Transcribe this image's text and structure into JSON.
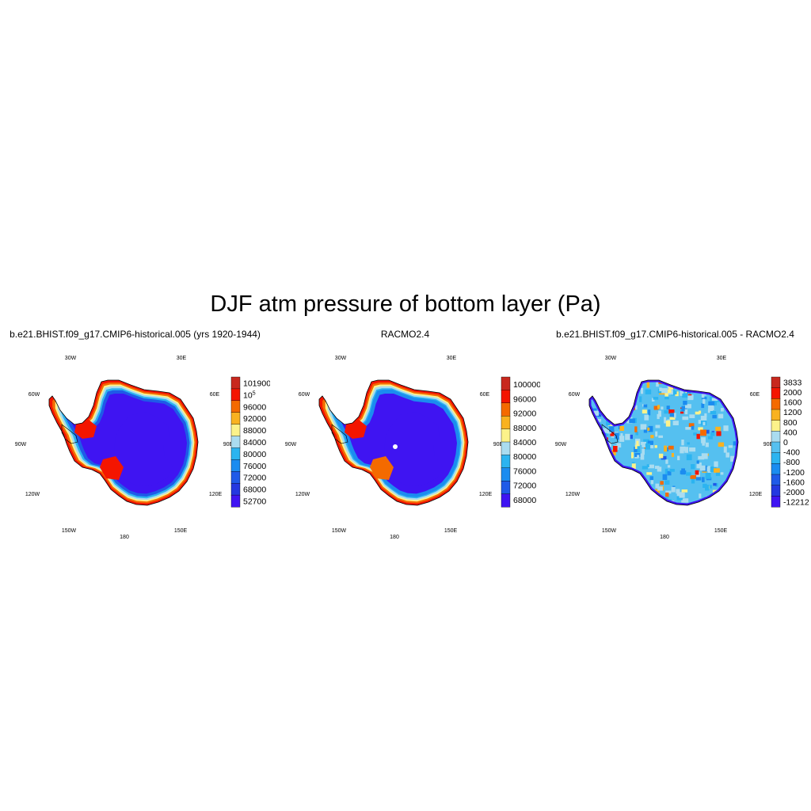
{
  "title": "DJF atm pressure of bottom layer (Pa)",
  "lon_labels": [
    "30W",
    "30E",
    "60W",
    "60E",
    "90W",
    "90E",
    "120W",
    "120E",
    "150W",
    "150E",
    "180"
  ],
  "panels": [
    {
      "title": "b.e21.BHIST.f09_g17.CMIP6-historical.005 (yrs 1920-1944)",
      "field": "model",
      "colorbar": {
        "labels": [
          "101900",
          "10^5",
          "96000",
          "92000",
          "88000",
          "84000",
          "80000",
          "76000",
          "72000",
          "68000",
          "52700"
        ],
        "colors": [
          "#c8281e",
          "#f41500",
          "#f46a00",
          "#f9b220",
          "#fcf28a",
          "#aadcf0",
          "#2cb4f0",
          "#1b8cf0",
          "#1f5ae8",
          "#2438e0",
          "#3f14f2"
        ]
      }
    },
    {
      "title": "RACMO2.4",
      "field": "racmo",
      "colorbar": {
        "labels": [
          "100000",
          "96000",
          "92000",
          "88000",
          "84000",
          "80000",
          "76000",
          "72000",
          "68000"
        ],
        "colors": [
          "#c8281e",
          "#f41500",
          "#f46a00",
          "#f9b220",
          "#fcf28a",
          "#aadcf0",
          "#2cb4f0",
          "#1b8cf0",
          "#1f5ae8",
          "#3f14f2"
        ]
      }
    },
    {
      "title": "b.e21.BHIST.f09_g17.CMIP6-historical.005 - RACMO2.4",
      "field": "diff",
      "colorbar": {
        "labels": [
          "3833",
          "2000",
          "1600",
          "1200",
          "800",
          "400",
          "0",
          "-400",
          "-800",
          "-1200",
          "-1600",
          "-2000",
          "-12212"
        ],
        "colors": [
          "#c8281e",
          "#f41500",
          "#f46a00",
          "#f9b220",
          "#fcf28a",
          "#aadcf0",
          "#55c0f0",
          "#2cb4f0",
          "#1b8cf0",
          "#1f5ae8",
          "#2438e0",
          "#3f14f2"
        ]
      }
    }
  ]
}
